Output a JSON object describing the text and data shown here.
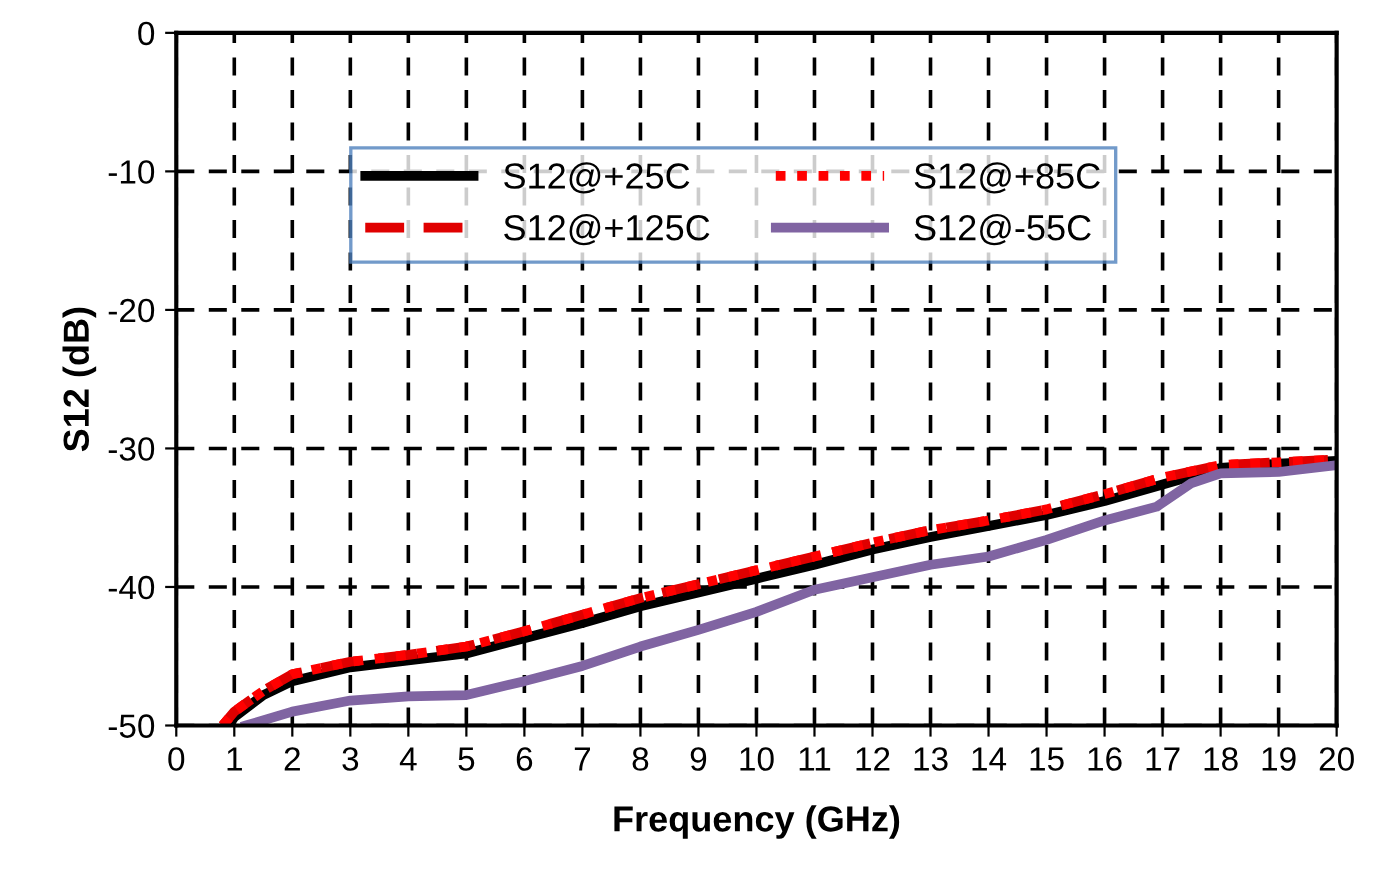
{
  "chart_data": {
    "type": "line",
    "xlabel": "Frequency (GHz)",
    "ylabel": "S12 (dB)",
    "xlim": [
      0,
      20
    ],
    "xticks": [
      0,
      1,
      2,
      3,
      4,
      5,
      6,
      7,
      8,
      9,
      10,
      11,
      12,
      13,
      14,
      15,
      16,
      17,
      18,
      19,
      20
    ],
    "ylim": [
      -50,
      0
    ],
    "yticks": [
      -50,
      -40,
      -30,
      -20,
      -10,
      0
    ],
    "grid": true,
    "legend": "top",
    "series": [
      {
        "name": "S12@+25C",
        "color": "#000000",
        "line_style": "solid",
        "x": [
          0.9,
          1,
          1.5,
          2,
          3,
          4,
          5,
          6,
          7,
          8,
          9,
          10,
          11,
          12,
          13,
          14,
          15,
          16,
          17,
          18,
          19,
          20
        ],
        "values": [
          -50,
          -49.4,
          -47.8,
          -46.8,
          -45.8,
          -45.3,
          -44.8,
          -43.7,
          -42.6,
          -41.4,
          -40.4,
          -39.4,
          -38.4,
          -37.3,
          -36.4,
          -35.6,
          -34.8,
          -33.8,
          -32.6,
          -31.4,
          -31.1,
          -30.9
        ]
      },
      {
        "name": "S12@+125C",
        "color": "#e00000",
        "line_style": "dashed",
        "x": [
          0.8,
          1,
          1.5,
          2,
          3,
          4,
          5,
          6,
          7,
          8,
          9,
          10,
          11,
          12,
          13,
          14,
          15,
          16,
          17,
          18,
          19,
          20
        ],
        "values": [
          -50,
          -49,
          -47.5,
          -46.3,
          -45.4,
          -44.9,
          -44.3,
          -43.2,
          -42,
          -40.8,
          -39.8,
          -38.8,
          -37.8,
          -36.8,
          -35.9,
          -35.2,
          -34.4,
          -33.3,
          -32.1,
          -31.2,
          -31,
          -30.8
        ]
      },
      {
        "name": "S12@+85C",
        "color": "#ff0000",
        "line_style": "dotted",
        "x": [
          0.8,
          1,
          1.5,
          2,
          3,
          4,
          5,
          6,
          7,
          8,
          9,
          10,
          11,
          12,
          13,
          14,
          15,
          16,
          17,
          18,
          19,
          20
        ],
        "values": [
          -50,
          -49,
          -47.5,
          -46.3,
          -45.4,
          -44.9,
          -44.3,
          -43.2,
          -42,
          -40.8,
          -39.8,
          -38.8,
          -37.8,
          -36.8,
          -35.9,
          -35.2,
          -34.4,
          -33.3,
          -32.1,
          -31.2,
          -31,
          -30.8
        ]
      },
      {
        "name": "S12@-55C",
        "color": "#8064a2",
        "line_style": "solid",
        "x": [
          1.2,
          2,
          3,
          4,
          5,
          6,
          7,
          8,
          9,
          10,
          11,
          12,
          13,
          14,
          15,
          16,
          16.9,
          17.5,
          18,
          19,
          20
        ],
        "values": [
          -50,
          -49,
          -48.2,
          -47.9,
          -47.8,
          -46.8,
          -45.7,
          -44.3,
          -43.1,
          -41.8,
          -40.2,
          -39.3,
          -38.4,
          -37.8,
          -36.6,
          -35.2,
          -34.2,
          -32.5,
          -31.8,
          -31.7,
          -31.2
        ]
      }
    ]
  }
}
